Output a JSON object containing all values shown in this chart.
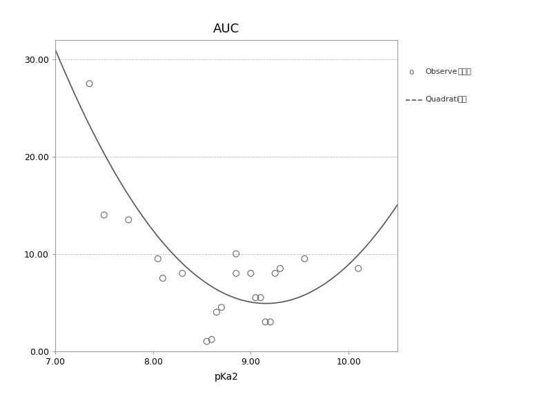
{
  "title": "AUC",
  "xlabel": "pKa2",
  "xlim": [
    7.0,
    10.5
  ],
  "ylim": [
    0.0,
    32.0
  ],
  "xticks": [
    7.0,
    8.0,
    9.0,
    10.0
  ],
  "xtick_labels": [
    "7.00",
    "8.00",
    "9.00",
    "10.00"
  ],
  "yticks": [
    0.0,
    10.0,
    20.0,
    30.0
  ],
  "ytick_labels": [
    "0.00",
    "10.00",
    "20.00",
    "30.00"
  ],
  "scatter_x": [
    7.35,
    7.5,
    7.75,
    8.05,
    8.1,
    8.3,
    8.55,
    8.6,
    8.65,
    8.7,
    8.85,
    8.85,
    9.0,
    9.05,
    9.1,
    9.15,
    9.2,
    9.25,
    9.3,
    9.55,
    10.1
  ],
  "scatter_y": [
    27.5,
    14.0,
    13.5,
    9.5,
    7.5,
    8.0,
    1.0,
    1.2,
    4.0,
    4.5,
    10.0,
    8.0,
    8.0,
    5.5,
    5.5,
    3.0,
    3.0,
    8.0,
    8.5,
    9.5,
    8.5
  ],
  "quad_a": 5.619,
  "quad_b": -102.9,
  "quad_c": 476.0,
  "curve_x_min": 7.0,
  "curve_x_max": 10.5,
  "background_color": "#ffffff",
  "scatter_edgecolor": "#666666",
  "scatter_size": 40,
  "curve_color": "#555555",
  "curve_linewidth": 1.2,
  "title_fontsize": 13,
  "axis_label_fontsize": 10,
  "tick_fontsize": 9,
  "grid_linestyle": "--",
  "grid_color": "#bbbbbb",
  "grid_linewidth": 0.6,
  "spine_color": "#999999",
  "legend_label1a": "Observe",
  "legend_label1b": "已预测",
  "legend_label2a": "Quadrati",
  "legend_label2b": "二次"
}
